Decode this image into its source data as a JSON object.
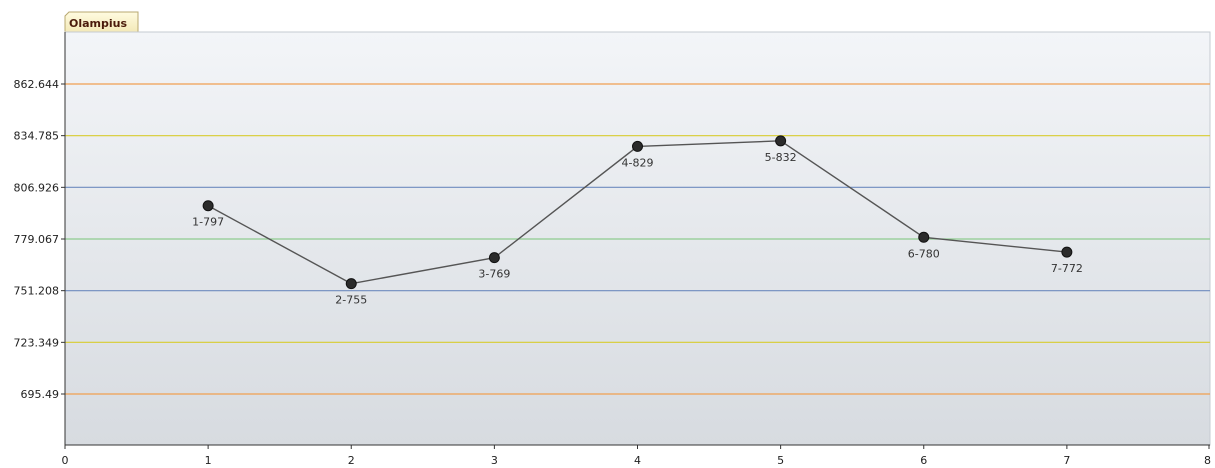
{
  "chart_data": {
    "type": "line",
    "title": "Olampius",
    "xlim": [
      0,
      8
    ],
    "x_ticks": [
      "0",
      "1",
      "2",
      "3",
      "4",
      "5",
      "6",
      "7",
      "8"
    ],
    "y_ticks": [
      {
        "value": 695.49,
        "label": "695.49",
        "line_color": "#f0a050"
      },
      {
        "value": 723.349,
        "label": "723.349",
        "line_color": "#d8cc30"
      },
      {
        "value": 751.208,
        "label": "751.208",
        "line_color": "#6f8cbf"
      },
      {
        "value": 779.067,
        "label": "779.067",
        "line_color": "#8fcc8f"
      },
      {
        "value": 806.926,
        "label": "806.926",
        "line_color": "#6f8cbf"
      },
      {
        "value": 834.785,
        "label": "834.785",
        "line_color": "#d8cc30"
      },
      {
        "value": 862.644,
        "label": "862.644",
        "line_color": "#f0a050"
      }
    ],
    "series": [
      {
        "line_color": "#555555",
        "marker_color": "#2b2b2b",
        "points": [
          {
            "x": 1,
            "y": 797,
            "label": "1-797"
          },
          {
            "x": 2,
            "y": 755,
            "label": "2-755"
          },
          {
            "x": 3,
            "y": 769,
            "label": "3-769"
          },
          {
            "x": 4,
            "y": 829,
            "label": "4-829"
          },
          {
            "x": 5,
            "y": 832,
            "label": "5-832"
          },
          {
            "x": 6,
            "y": 780,
            "label": "6-780"
          },
          {
            "x": 7,
            "y": 772,
            "label": "7-772"
          }
        ]
      }
    ]
  }
}
